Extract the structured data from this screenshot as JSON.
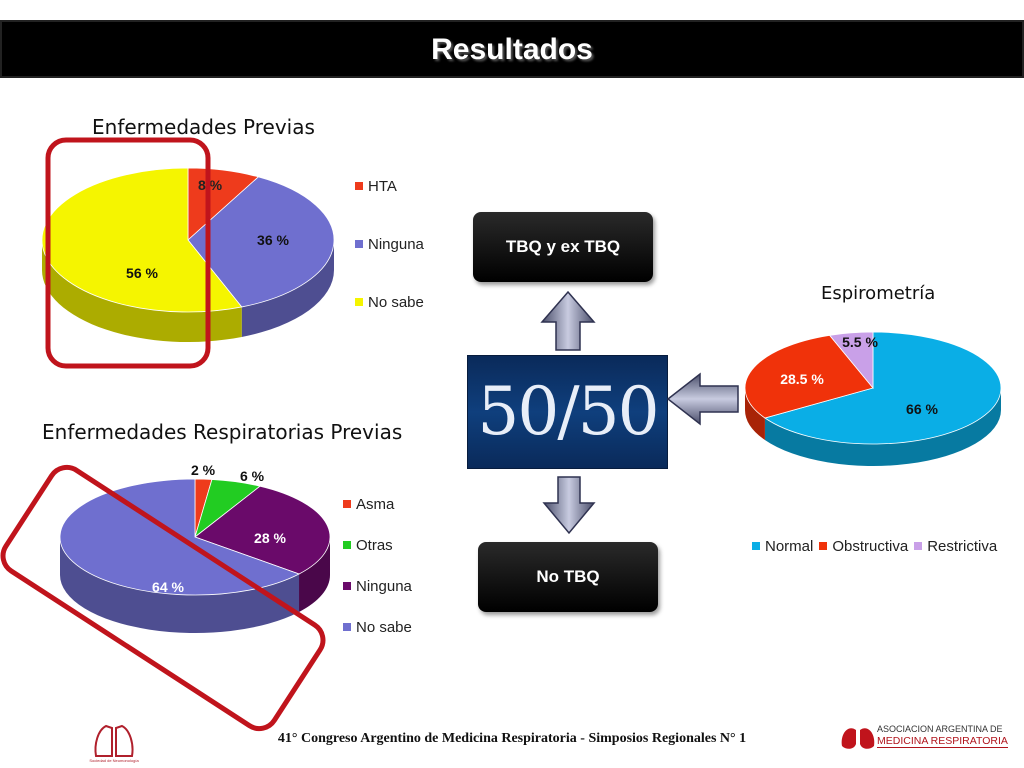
{
  "header": {
    "title": "Resultados"
  },
  "chart_data": [
    {
      "type": "pie",
      "title": "Enfermedades  Previas",
      "categories": [
        "HTA",
        "Ninguna",
        "No sabe"
      ],
      "values": [
        8,
        36,
        56
      ],
      "value_labels": [
        "8 %",
        "36 %",
        "56 %"
      ],
      "colors": [
        "#ee3b1c",
        "#6f6fcf",
        "#f5f500"
      ],
      "legend": "right"
    },
    {
      "type": "pie",
      "title": "Enfermedades Respiratorias Previas",
      "categories": [
        "Asma",
        "Otras",
        "Ninguna",
        "No sabe"
      ],
      "values": [
        2,
        6,
        28,
        64
      ],
      "value_labels": [
        "2 %",
        "6 %",
        "28 %",
        "64 %"
      ],
      "colors": [
        "#ee3b1c",
        "#22cc22",
        "#6a0a6a",
        "#6f6fcf"
      ],
      "legend": "right"
    },
    {
      "type": "pie",
      "title": "Espirometría",
      "categories": [
        "Normal",
        "Obstructiva",
        "Restrictiva"
      ],
      "values": [
        66,
        28.5,
        5.5
      ],
      "value_labels": [
        "66 %",
        "28.5 %",
        "5.5 %"
      ],
      "colors": [
        "#0aaee6",
        "#f0320a",
        "#c9a0e8"
      ],
      "legend": "bottom"
    }
  ],
  "center": {
    "ratio": "50/50",
    "top_box": "TBQ  y  ex TBQ",
    "bottom_box": "No  TBQ"
  },
  "footer": {
    "text": "41° Congreso Argentino de Medicina Respiratoria  - Simposios Regionales N° 1",
    "left_logo_text": "Sociedad de Neumonología",
    "right_logo_line1": "ASOCIACION ARGENTINA DE",
    "right_logo_line2": "MEDICINA RESPIRATORIA"
  }
}
